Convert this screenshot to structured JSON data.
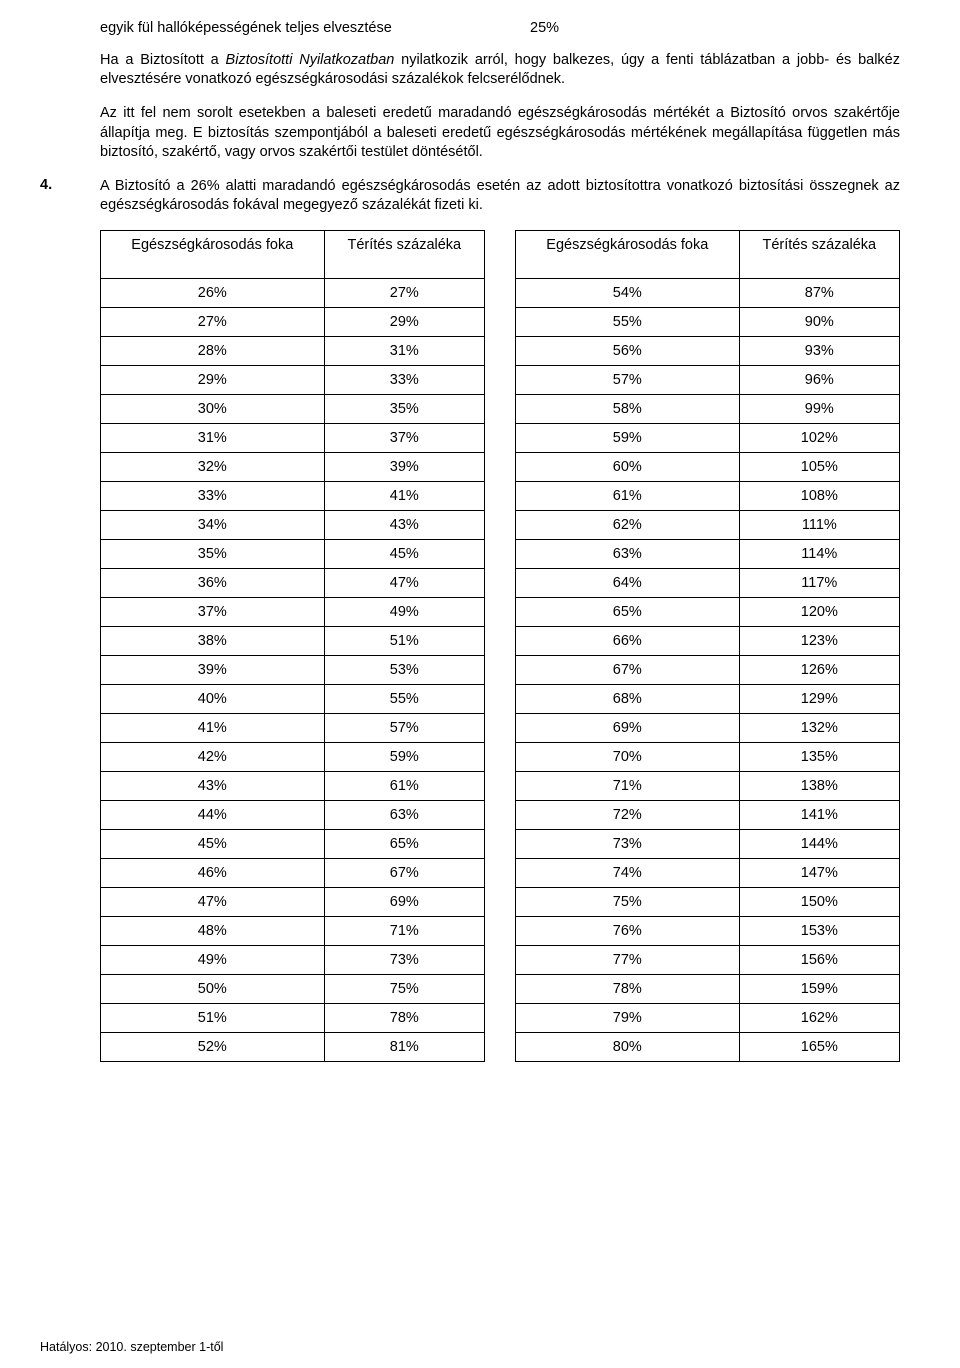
{
  "top_row": {
    "label": "egyik fül hallóképességének teljes elvesztése",
    "value": "25%"
  },
  "para1_pre": "Ha a Biztosított a ",
  "para1_italic": "Biztosítotti Nyilatkozatban",
  "para1_post": " nyilatkozik arról, hogy balkezes, úgy a fenti táblázatban a jobb- és balkéz elvesztésére vonatkozó egészségkárosodási százalékok felcserélődnek.",
  "para2": "Az itt fel nem sorolt esetekben a baleseti eredetű maradandó egészségkárosodás mértékét a Biztosító orvos szakértője állapítja meg. E biztosítás szempontjából a baleseti eredetű egészségkárosodás mértékének megállapítása független más biztosító, szakértő, vagy orvos szakértői testület döntésétől.",
  "item4_num": "4.",
  "item4_text": "A Biztosító a 26% alatti maradandó egészségkárosodás esetén az adott biztosítottra vonatkozó biztosítási összegnek az egészségkárosodás fokával megegyező százalékát fizeti ki.",
  "table": {
    "header_col1": "Egészségkárosodás foka",
    "header_col2": "Térítés százaléka",
    "left_rows": [
      [
        "26%",
        "27%"
      ],
      [
        "27%",
        "29%"
      ],
      [
        "28%",
        "31%"
      ],
      [
        "29%",
        "33%"
      ],
      [
        "30%",
        "35%"
      ],
      [
        "31%",
        "37%"
      ],
      [
        "32%",
        "39%"
      ],
      [
        "33%",
        "41%"
      ],
      [
        "34%",
        "43%"
      ],
      [
        "35%",
        "45%"
      ],
      [
        "36%",
        "47%"
      ],
      [
        "37%",
        "49%"
      ],
      [
        "38%",
        "51%"
      ],
      [
        "39%",
        "53%"
      ],
      [
        "40%",
        "55%"
      ],
      [
        "41%",
        "57%"
      ],
      [
        "42%",
        "59%"
      ],
      [
        "43%",
        "61%"
      ],
      [
        "44%",
        "63%"
      ],
      [
        "45%",
        "65%"
      ],
      [
        "46%",
        "67%"
      ],
      [
        "47%",
        "69%"
      ],
      [
        "48%",
        "71%"
      ],
      [
        "49%",
        "73%"
      ],
      [
        "50%",
        "75%"
      ],
      [
        "51%",
        "78%"
      ],
      [
        "52%",
        "81%"
      ]
    ],
    "right_rows": [
      [
        "54%",
        "87%"
      ],
      [
        "55%",
        "90%"
      ],
      [
        "56%",
        "93%"
      ],
      [
        "57%",
        "96%"
      ],
      [
        "58%",
        "99%"
      ],
      [
        "59%",
        "102%"
      ],
      [
        "60%",
        "105%"
      ],
      [
        "61%",
        "108%"
      ],
      [
        "62%",
        "111%"
      ],
      [
        "63%",
        "114%"
      ],
      [
        "64%",
        "117%"
      ],
      [
        "65%",
        "120%"
      ],
      [
        "66%",
        "123%"
      ],
      [
        "67%",
        "126%"
      ],
      [
        "68%",
        "129%"
      ],
      [
        "69%",
        "132%"
      ],
      [
        "70%",
        "135%"
      ],
      [
        "71%",
        "138%"
      ],
      [
        "72%",
        "141%"
      ],
      [
        "73%",
        "144%"
      ],
      [
        "74%",
        "147%"
      ],
      [
        "75%",
        "150%"
      ],
      [
        "76%",
        "153%"
      ],
      [
        "77%",
        "156%"
      ],
      [
        "78%",
        "159%"
      ],
      [
        "79%",
        "162%"
      ],
      [
        "80%",
        "165%"
      ]
    ]
  },
  "footer": "Hatályos: 2010. szeptember 1-től"
}
